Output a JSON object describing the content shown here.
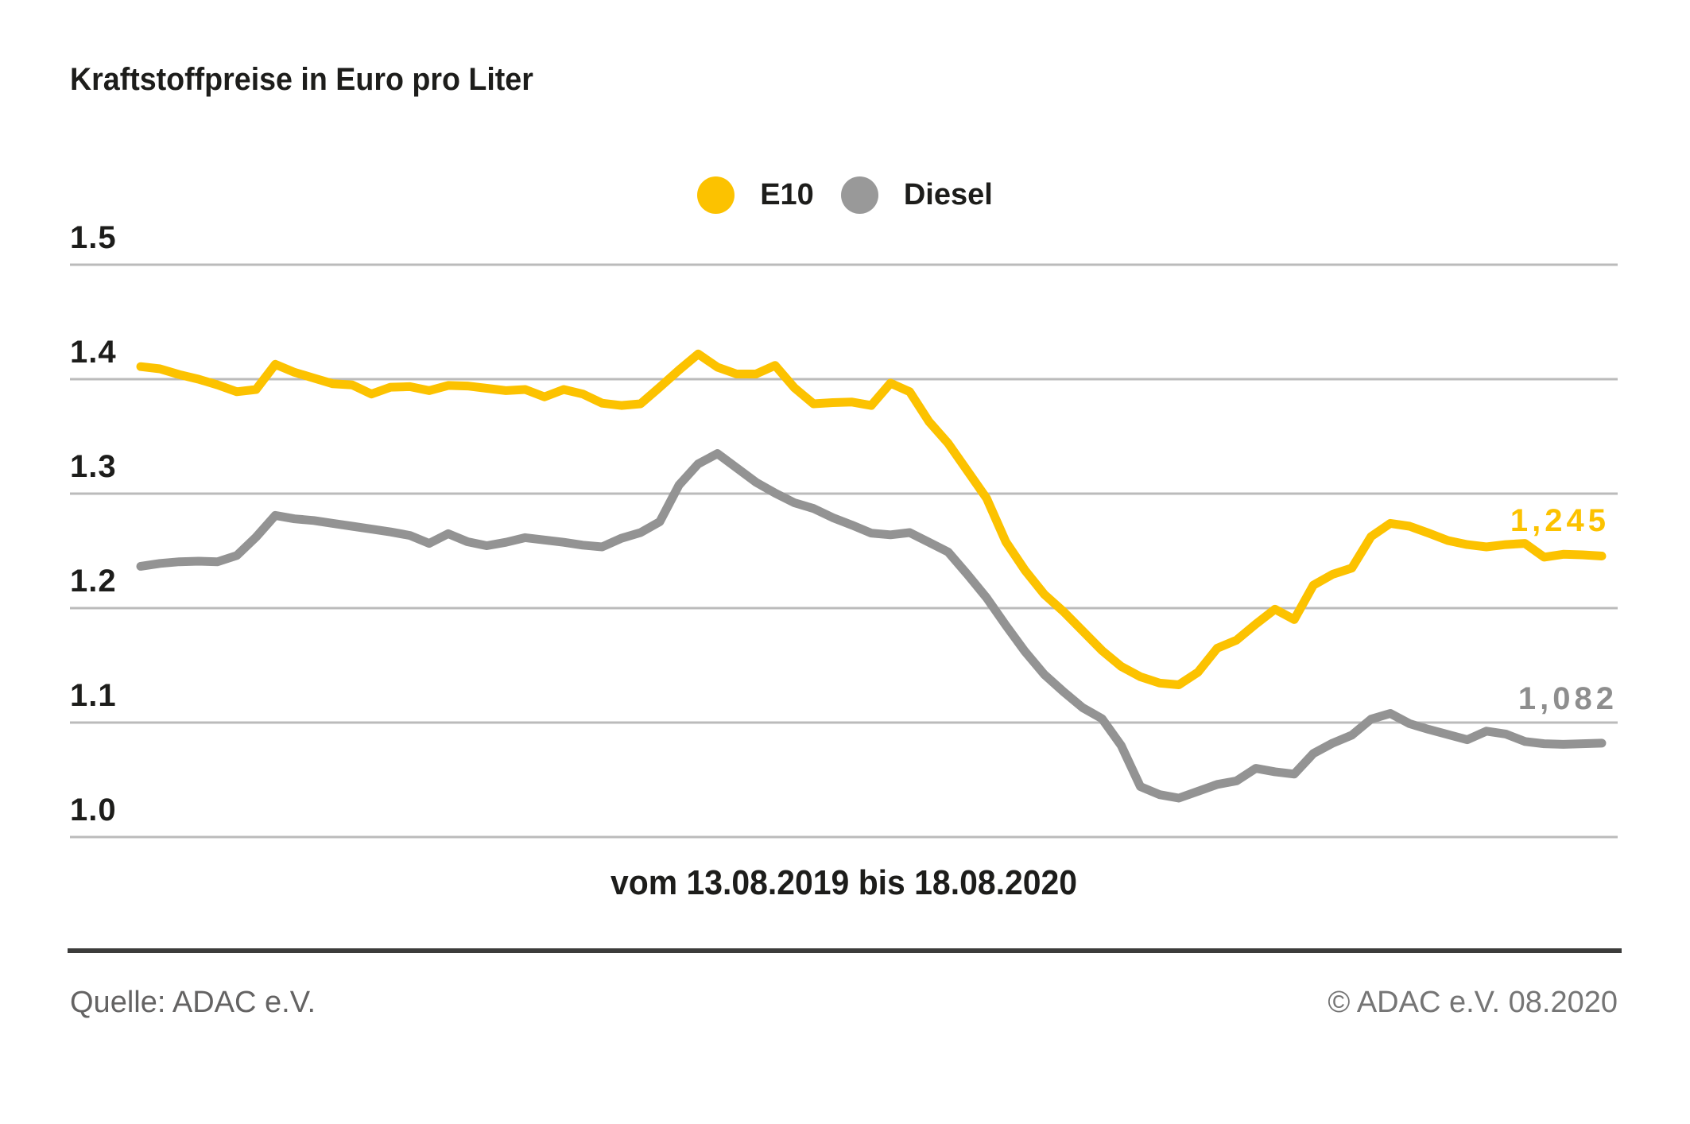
{
  "title": "Kraftstoffpreise in Euro pro Liter",
  "legend": [
    {
      "label": "E10",
      "color": "#fcc200"
    },
    {
      "label": "Diesel",
      "color": "#999999"
    }
  ],
  "chart_data": {
    "type": "line",
    "title": "Kraftstoffpreise in Euro pro Liter",
    "xlabel": "vom 13.08.2019 bis 18.08.2020",
    "ylabel": "Euro pro Liter",
    "x_period": {
      "start": "13.08.2019",
      "end": "18.08.2020"
    },
    "ylim": [
      0.975,
      1.52
    ],
    "yticks": [
      1.5,
      1.4,
      1.3,
      1.2,
      1.1,
      1.0
    ],
    "ytick_labels": [
      "1.5",
      "1.4",
      "1.3",
      "1.2",
      "1.1",
      "1.0"
    ],
    "grid": true,
    "legend_position": "top-center",
    "grid_color": "#bbbbbb",
    "series": [
      {
        "name": "E10",
        "color": "#fcc200",
        "end_label": "1,245",
        "end_value": 1.245,
        "values": [
          1.411,
          1.409,
          1.404,
          1.4,
          1.395,
          1.389,
          1.391,
          1.413,
          1.406,
          1.401,
          1.396,
          1.395,
          1.387,
          1.393,
          1.3935,
          1.39,
          1.3945,
          1.394,
          1.392,
          1.39,
          1.391,
          1.3845,
          1.391,
          1.387,
          1.379,
          1.377,
          1.3785,
          1.393,
          1.408,
          1.422,
          1.4105,
          1.4045,
          1.4045,
          1.412,
          1.3925,
          1.3785,
          1.3795,
          1.38,
          1.377,
          1.3965,
          1.389,
          1.363,
          1.344,
          1.32,
          1.296,
          1.258,
          1.233,
          1.212,
          1.197,
          1.18,
          1.163,
          1.149,
          1.14,
          1.1345,
          1.133,
          1.144,
          1.165,
          1.172,
          1.186,
          1.199,
          1.19,
          1.22,
          1.2295,
          1.235,
          1.2625,
          1.274,
          1.2715,
          1.2655,
          1.259,
          1.2555,
          1.2535,
          1.2555,
          1.2565,
          1.2445,
          1.247,
          1.2465,
          1.2455
        ]
      },
      {
        "name": "Diesel",
        "color": "#939393",
        "end_label": "1,082",
        "end_value": 1.082,
        "values": [
          1.2365,
          1.239,
          1.2405,
          1.241,
          1.2405,
          1.246,
          1.262,
          1.281,
          1.278,
          1.2765,
          1.274,
          1.2715,
          1.269,
          1.2665,
          1.2635,
          1.2565,
          1.265,
          1.258,
          1.2545,
          1.2575,
          1.2615,
          1.2595,
          1.2575,
          1.255,
          1.2535,
          1.261,
          1.266,
          1.2755,
          1.3075,
          1.326,
          1.335,
          1.3225,
          1.31,
          1.3005,
          1.292,
          1.287,
          1.279,
          1.2725,
          1.2655,
          1.264,
          1.266,
          1.2575,
          1.249,
          1.2295,
          1.209,
          1.185,
          1.162,
          1.142,
          1.127,
          1.113,
          1.1035,
          1.08,
          1.044,
          1.037,
          1.034,
          1.04,
          1.046,
          1.049,
          1.06,
          1.057,
          1.055,
          1.073,
          1.082,
          1.089,
          1.103,
          1.108,
          1.099,
          1.094,
          1.0895,
          1.085,
          1.0925,
          1.09,
          1.0835,
          1.0815,
          1.081,
          1.0815,
          1.082
        ]
      }
    ]
  },
  "footer": {
    "source": "Quelle: ADAC e.V.",
    "copyright": "© ADAC e.V. 08.2020"
  }
}
